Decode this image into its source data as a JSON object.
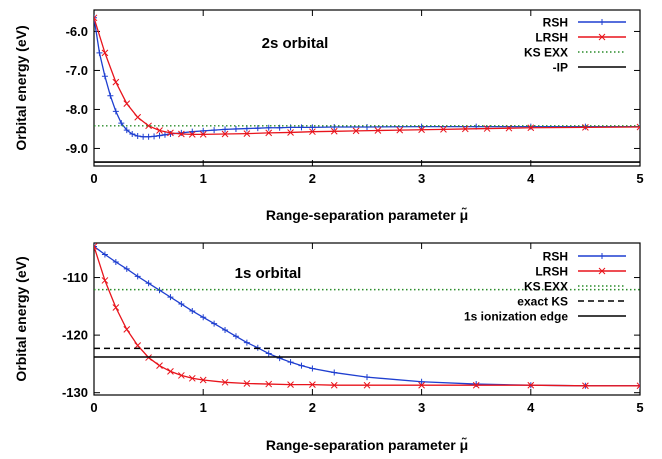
{
  "chart_data": [
    {
      "type": "line",
      "title": "2s orbital",
      "xlabel": "Range-separation parameter μ̃",
      "ylabel": "Orbital energy (eV)",
      "xlim": [
        0,
        5
      ],
      "ylim": [
        -9.45,
        -5.45
      ],
      "xticks": [
        "0",
        "1",
        "2",
        "3",
        "4",
        "5"
      ],
      "yticks": [
        {
          "value": -6.0,
          "label": "-6.0"
        },
        {
          "value": -7.0,
          "label": "-7.0"
        },
        {
          "value": -8.0,
          "label": "-8.0"
        },
        {
          "value": -9.0,
          "label": "-9.0"
        }
      ],
      "legend_position": "top-right",
      "series": [
        {
          "name": "RSH",
          "color": "#1f3fd0",
          "style": "solid",
          "marker": "plus",
          "x": [
            0,
            0.05,
            0.1,
            0.15,
            0.2,
            0.25,
            0.3,
            0.35,
            0.4,
            0.45,
            0.5,
            0.55,
            0.6,
            0.65,
            0.7,
            0.8,
            0.9,
            1.0,
            1.1,
            1.2,
            1.3,
            1.4,
            1.5,
            1.6,
            1.7,
            1.8,
            1.9,
            2.0,
            2.2,
            2.5,
            3.0,
            3.5,
            4.0,
            4.5,
            5.0
          ],
          "y": [
            -5.65,
            -6.55,
            -7.15,
            -7.65,
            -8.05,
            -8.35,
            -8.53,
            -8.63,
            -8.68,
            -8.7,
            -8.7,
            -8.69,
            -8.67,
            -8.65,
            -8.63,
            -8.6,
            -8.57,
            -8.55,
            -8.53,
            -8.51,
            -8.5,
            -8.49,
            -8.48,
            -8.47,
            -8.47,
            -8.46,
            -8.46,
            -8.46,
            -8.45,
            -8.45,
            -8.44,
            -8.44,
            -8.44,
            -8.44,
            -8.44
          ]
        },
        {
          "name": "LRSH",
          "color": "#e8141c",
          "style": "solid",
          "marker": "cross",
          "x": [
            0,
            0.1,
            0.2,
            0.3,
            0.4,
            0.5,
            0.6,
            0.7,
            0.8,
            0.9,
            1.0,
            1.2,
            1.4,
            1.6,
            1.8,
            2.0,
            2.2,
            2.4,
            2.6,
            2.8,
            3.0,
            3.2,
            3.4,
            3.6,
            3.8,
            4.0,
            4.5,
            5.0
          ],
          "y": [
            -5.65,
            -6.55,
            -7.3,
            -7.85,
            -8.2,
            -8.42,
            -8.54,
            -8.6,
            -8.63,
            -8.64,
            -8.64,
            -8.63,
            -8.62,
            -8.6,
            -8.59,
            -8.57,
            -8.56,
            -8.55,
            -8.54,
            -8.53,
            -8.52,
            -8.51,
            -8.5,
            -8.49,
            -8.48,
            -8.47,
            -8.46,
            -8.45
          ]
        },
        {
          "name": "KS EXX",
          "color": "#2a8c2a",
          "style": "dotted",
          "hline": -8.42
        },
        {
          "name": "-IP",
          "color": "#000000",
          "style": "solid",
          "hline": -9.35
        }
      ]
    },
    {
      "type": "line",
      "title": "1s orbital",
      "xlabel": "Range-separation parameter μ̃",
      "ylabel": "Orbital energy (eV)",
      "xlim": [
        0,
        5
      ],
      "ylim": [
        -130.4,
        -104.0
      ],
      "xticks": [
        "0",
        "1",
        "2",
        "3",
        "4",
        "5"
      ],
      "yticks": [
        {
          "value": -110,
          "label": "-110"
        },
        {
          "value": -120,
          "label": "-120"
        },
        {
          "value": -130,
          "label": "-130"
        }
      ],
      "legend_position": "top-right",
      "series": [
        {
          "name": "RSH",
          "color": "#1f3fd0",
          "style": "solid",
          "marker": "plus",
          "x": [
            0,
            0.1,
            0.2,
            0.3,
            0.4,
            0.5,
            0.6,
            0.7,
            0.8,
            0.9,
            1.0,
            1.1,
            1.2,
            1.3,
            1.4,
            1.5,
            1.6,
            1.7,
            1.8,
            1.9,
            2.0,
            2.2,
            2.5,
            3.0,
            3.5,
            4.0,
            4.5,
            5.0
          ],
          "y": [
            -104.6,
            -106.0,
            -107.3,
            -108.5,
            -109.8,
            -111.0,
            -112.2,
            -113.4,
            -114.6,
            -115.8,
            -116.9,
            -118.0,
            -119.1,
            -120.2,
            -121.3,
            -122.2,
            -123.2,
            -124.0,
            -124.7,
            -125.3,
            -125.8,
            -126.5,
            -127.3,
            -128.1,
            -128.5,
            -128.7,
            -128.8,
            -128.8
          ]
        },
        {
          "name": "LRSH",
          "color": "#e8141c",
          "style": "solid",
          "marker": "cross",
          "x": [
            0,
            0.1,
            0.2,
            0.3,
            0.4,
            0.5,
            0.6,
            0.7,
            0.8,
            0.9,
            1.0,
            1.2,
            1.4,
            1.6,
            1.8,
            2.0,
            2.2,
            2.5,
            3.0,
            3.5,
            4.0,
            4.5,
            5.0
          ],
          "y": [
            -104.6,
            -110.5,
            -115.2,
            -119.0,
            -121.8,
            -123.9,
            -125.3,
            -126.3,
            -127.0,
            -127.5,
            -127.8,
            -128.2,
            -128.4,
            -128.5,
            -128.6,
            -128.6,
            -128.7,
            -128.7,
            -128.7,
            -128.7,
            -128.7,
            -128.8,
            -128.8
          ]
        },
        {
          "name": "KS EXX",
          "color": "#2a8c2a",
          "style": "dotted",
          "hline": -112.1
        },
        {
          "name": "exact KS",
          "color": "#000000",
          "style": "dashed",
          "hline": -122.3
        },
        {
          "name": "1s ionization edge",
          "color": "#000000",
          "style": "solid",
          "hline": -123.8
        }
      ]
    }
  ]
}
